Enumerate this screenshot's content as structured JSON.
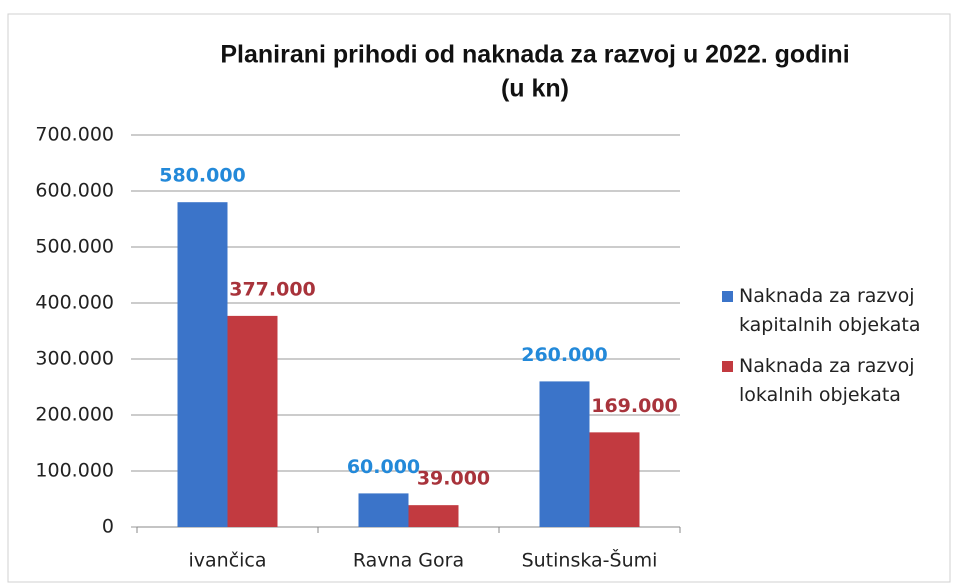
{
  "chart_data": {
    "type": "bar",
    "title": [
      "Planirani prihodi od naknada za razvoj u 2022. godini",
      "(u kn)"
    ],
    "categories": [
      "ivančica",
      "Ravna Gora",
      "Sutinska-Šumi"
    ],
    "series": [
      {
        "name": "Naknada za razvoj kapitalnih objekata",
        "color": "#3b74c9",
        "label_color": "#2389d9",
        "values": [
          580000,
          60000,
          260000
        ],
        "value_labels": [
          "580.000",
          "60.000",
          "260.000"
        ]
      },
      {
        "name": "Naknada za razvoj lokalnih objekata",
        "color": "#c23a40",
        "label_color": "#a8333b",
        "values": [
          377000,
          39000,
          169000
        ],
        "value_labels": [
          "377.000",
          "39.000",
          "169.000"
        ]
      }
    ],
    "ylim": [
      0,
      700000
    ],
    "yticks": [
      0,
      {
        "value": 100000,
        "label": "100.000"
      },
      {
        "value": 200000,
        "label": "200.000"
      },
      {
        "value": 300000,
        "label": "300.000"
      },
      {
        "value": 400000,
        "label": "400.000"
      },
      {
        "value": 500000,
        "label": "500.000"
      },
      {
        "value": 600000,
        "label": "600.000"
      },
      {
        "value": 700000,
        "label": "700.000"
      }
    ],
    "grid": true,
    "legend": "right"
  }
}
